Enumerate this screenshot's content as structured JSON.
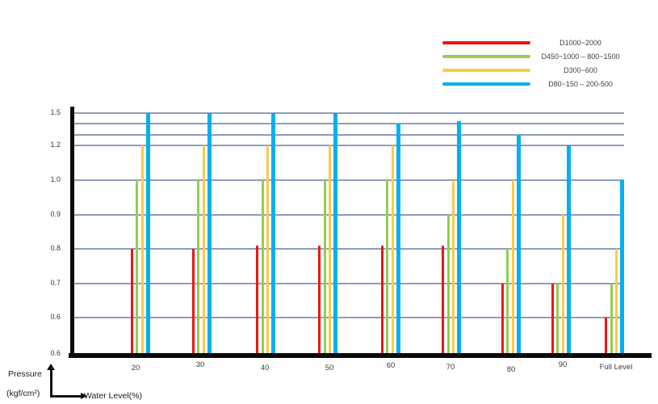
{
  "chart_data": {
    "type": "bar",
    "title": "",
    "categories": [
      "20",
      "30",
      "40",
      "50",
      "60",
      "70",
      "80",
      "90",
      "Full Level"
    ],
    "series": [
      {
        "name": "D1000~2000",
        "color": "#ee1515",
        "values": [
          0.8,
          0.8,
          0.81,
          0.81,
          0.81,
          0.81,
          0.7,
          0.7,
          0.6
        ]
      },
      {
        "name": "D450~1000 – 800~1500",
        "color": "#92d050",
        "values": [
          1.0,
          1.0,
          1.0,
          1.0,
          1.0,
          0.9,
          0.8,
          0.7,
          0.7
        ]
      },
      {
        "name": "D300~600",
        "color": "#fcca46",
        "values": [
          1.2,
          1.2,
          1.2,
          1.2,
          1.2,
          1.0,
          1.0,
          0.9,
          0.8
        ]
      },
      {
        "name": "D80~150 – 200-500",
        "color": "#00b0f0",
        "values": [
          1.5,
          1.5,
          1.5,
          1.5,
          1.4,
          1.42,
          1.3,
          1.2,
          1.0
        ]
      }
    ],
    "xlabel": "Water Level(%)",
    "ylabel": "Pressure (kgf/cm²)",
    "y_tick_labels": [
      "1.5",
      "1.2",
      "1.0",
      "0.9",
      "0.8",
      "0.7",
      "0.6",
      "0.6"
    ],
    "unlabeled_gridline_values": [
      1.4,
      1.3
    ],
    "ylim": [
      0.6,
      1.5
    ],
    "grid": true,
    "legend_position": "top-right"
  },
  "axis_titles": {
    "pressure_line1": "Pressure",
    "pressure_line2": "(kgf/cm²)",
    "x_axis": "Water Level(%)"
  },
  "colors": {
    "gridline": "#8e9dbb",
    "axis": "#0b0b0b"
  }
}
